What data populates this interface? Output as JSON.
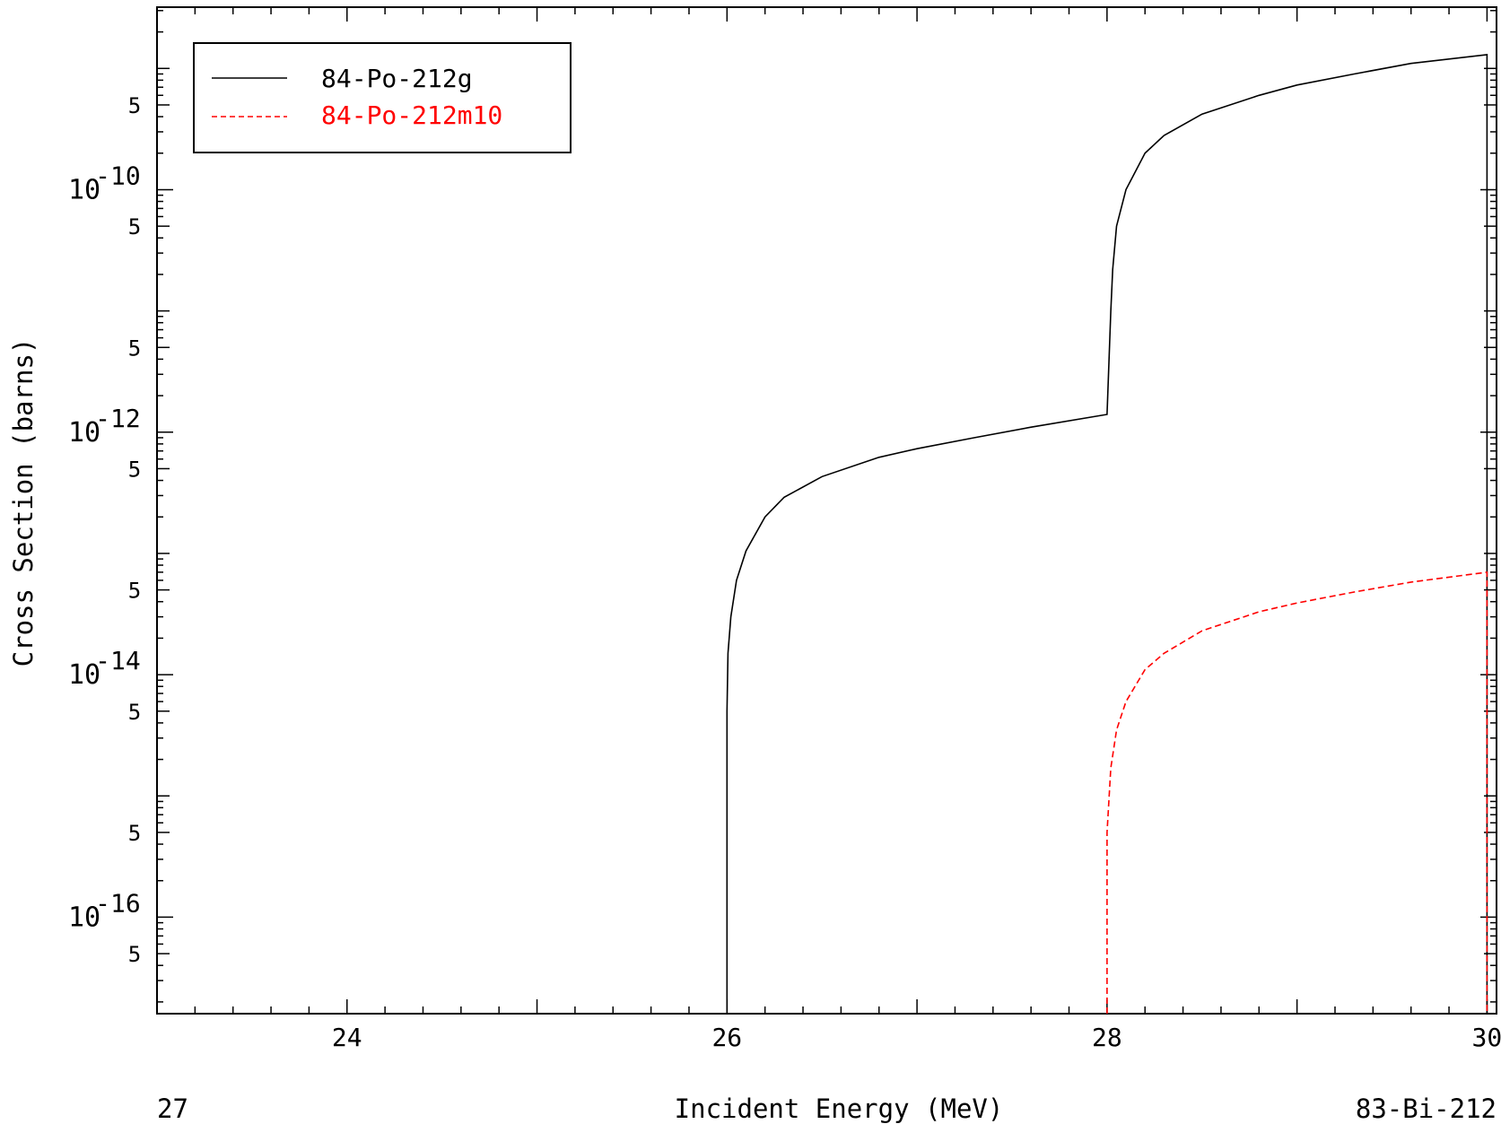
{
  "chart_data": {
    "type": "line",
    "title": "",
    "xlabel": "Incident Energy (MeV)",
    "ylabel": "Cross Section (barns)",
    "footer_left": "27",
    "footer_right": "83-Bi-212",
    "xlim": [
      23.0,
      30.05
    ],
    "ylim": [
      1.6e-17,
      3.2e-09
    ],
    "yscale": "log",
    "x_ticks": [
      {
        "value": 24,
        "label": "24"
      },
      {
        "value": 26,
        "label": "26"
      },
      {
        "value": 28,
        "label": "28"
      },
      {
        "value": 30,
        "label": "30"
      }
    ],
    "y_decades": [
      {
        "value": 1e-10,
        "label_base": "10",
        "label_exp": "-10"
      },
      {
        "value": 1e-12,
        "label_base": "10",
        "label_exp": "-12"
      },
      {
        "value": 1e-14,
        "label_base": "10",
        "label_exp": "-14"
      },
      {
        "value": 1e-16,
        "label_base": "10",
        "label_exp": "-16"
      }
    ],
    "y_five_labels": [
      {
        "value": 5e-10,
        "label": "5"
      },
      {
        "value": 5e-11,
        "label": "5"
      },
      {
        "value": 5e-12,
        "label": "5"
      },
      {
        "value": 5e-13,
        "label": "5"
      },
      {
        "value": 5e-14,
        "label": "5"
      },
      {
        "value": 5e-15,
        "label": "5"
      },
      {
        "value": 5e-16,
        "label": "5"
      },
      {
        "value": 5e-17,
        "label": "5"
      }
    ],
    "grid": false,
    "legend_position": "top-left",
    "series": [
      {
        "name": "84-Po-212g",
        "color": "#000000",
        "dash": "solid",
        "x": [
          26.0,
          26.0,
          26.005,
          26.02,
          26.05,
          26.1,
          26.2,
          26.3,
          26.5,
          26.8,
          27.0,
          27.3,
          27.6,
          28.0,
          28.02,
          28.03,
          28.05,
          28.1,
          28.2,
          28.3,
          28.5,
          28.8,
          29.0,
          29.3,
          29.6,
          30.0,
          30.0
        ],
        "y": [
          1.6e-17,
          5e-15,
          1.5e-14,
          3e-14,
          6e-14,
          1.05e-13,
          2e-13,
          2.9e-13,
          4.3e-13,
          6.2e-13,
          7.3e-13,
          9e-13,
          1.1e-12,
          1.4e-12,
          1e-11,
          2.2e-11,
          5e-11,
          1e-10,
          2e-10,
          2.8e-10,
          4.2e-10,
          6e-10,
          7.3e-10,
          9e-10,
          1.1e-09,
          1.3e-09,
          1.6e-17
        ]
      },
      {
        "name": "84-Po-212m10",
        "color": "#ff0000",
        "dash": "dashed",
        "x": [
          28.0,
          28.0,
          28.02,
          28.05,
          28.1,
          28.2,
          28.3,
          28.5,
          28.8,
          29.0,
          29.3,
          29.6,
          30.0,
          30.0
        ],
        "y": [
          1.6e-17,
          5e-16,
          1.7e-15,
          3.5e-15,
          6e-15,
          1.1e-14,
          1.5e-14,
          2.3e-14,
          3.3e-14,
          3.9e-14,
          4.8e-14,
          5.8e-14,
          7e-14,
          1.6e-17
        ]
      }
    ]
  }
}
